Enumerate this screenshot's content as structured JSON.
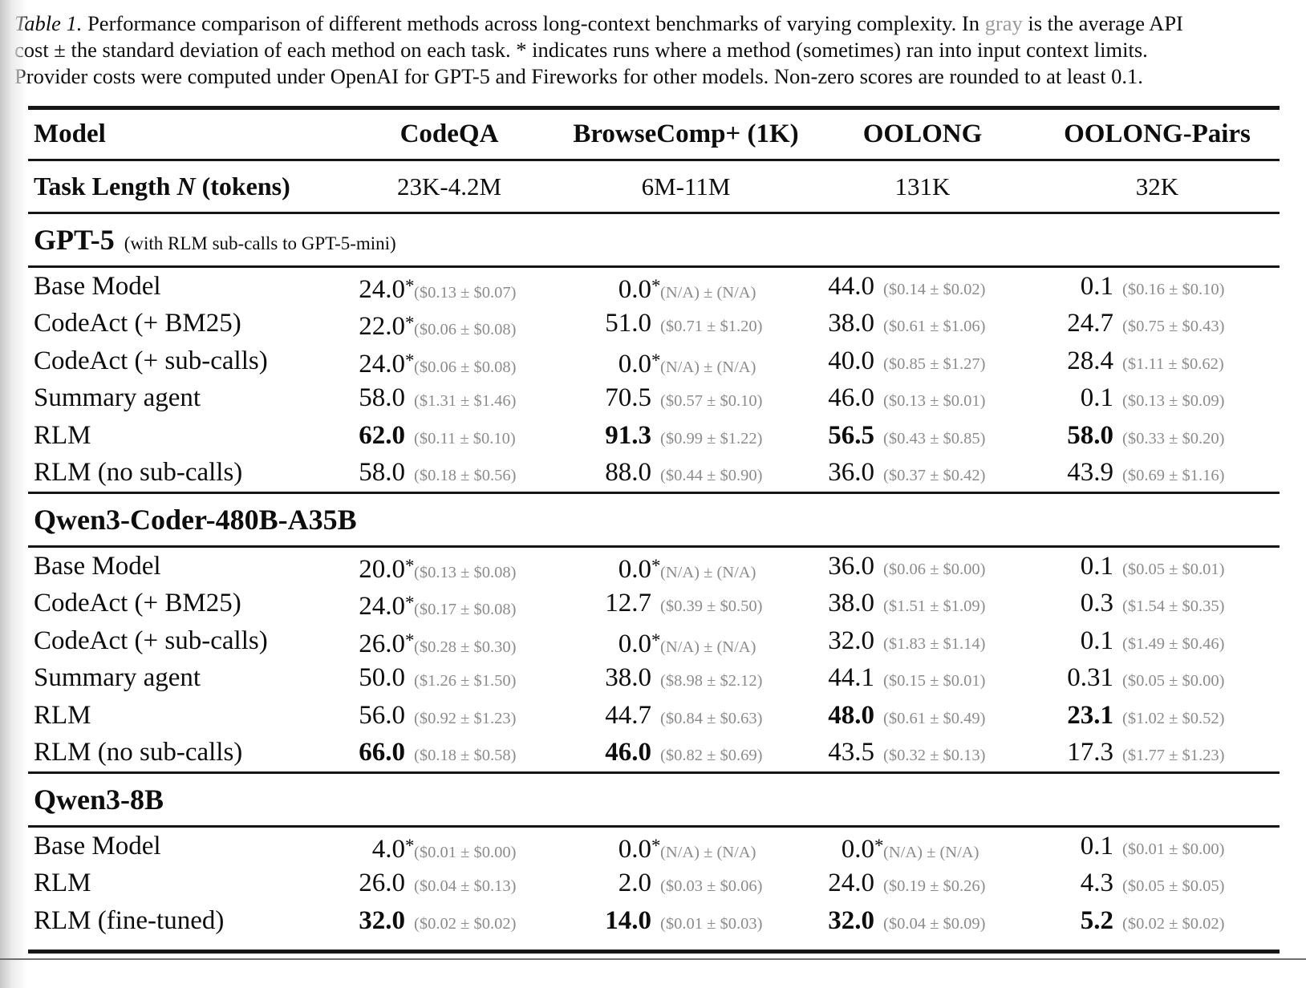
{
  "caption": {
    "label": "Table 1.",
    "line1_pre": "Performance comparison of different methods across long-context benchmarks of varying complexity. In ",
    "line1_gray": "gray",
    "line1_post": " is the average API",
    "line2": "cost ± the standard deviation of each method on each task. * indicates runs where a method (sometimes) ran into input context limits.",
    "line3": "Provider costs were computed under OpenAI for GPT-5 and Fireworks for other models. Non-zero scores are rounded to at least 0.1."
  },
  "table": {
    "columns": [
      "Model",
      "CodeQA",
      "BrowseComp+ (1K)",
      "OOLONG",
      "OOLONG-Pairs"
    ],
    "task_label_pre": "Task Length ",
    "task_label_n": "N",
    "task_label_post": " (tokens)",
    "task_lengths": [
      "23K-4.2M",
      "6M-11M",
      "131K",
      "32K"
    ],
    "colors": {
      "cost_gray": "#8c8c8c",
      "gray_word": "#9a9a9a",
      "rule_black": "#161616"
    },
    "sections": [
      {
        "title": "GPT-5",
        "subtitle": "(with RLM sub-calls to GPT-5-mini)",
        "rows": [
          {
            "model": "Base Model",
            "cells": [
              {
                "score": "24.0",
                "star": true,
                "bold": false,
                "cost": "($0.13 ± $0.07)"
              },
              {
                "score": "0.0",
                "star": true,
                "bold": false,
                "cost": "(N/A) ± (N/A)"
              },
              {
                "score": "44.0",
                "star": false,
                "bold": false,
                "cost": "($0.14 ± $0.02)"
              },
              {
                "score": "0.1",
                "star": false,
                "bold": false,
                "cost": "($0.16 ± $0.10)"
              }
            ]
          },
          {
            "model": "CodeAct (+ BM25)",
            "cells": [
              {
                "score": "22.0",
                "star": true,
                "bold": false,
                "cost": "($0.06 ± $0.08)"
              },
              {
                "score": "51.0",
                "star": false,
                "bold": false,
                "cost": "($0.71 ± $1.20)"
              },
              {
                "score": "38.0",
                "star": false,
                "bold": false,
                "cost": "($0.61 ± $1.06)"
              },
              {
                "score": "24.7",
                "star": false,
                "bold": false,
                "cost": "($0.75 ± $0.43)"
              }
            ]
          },
          {
            "model": "CodeAct (+ sub-calls)",
            "cells": [
              {
                "score": "24.0",
                "star": true,
                "bold": false,
                "cost": "($0.06 ± $0.08)"
              },
              {
                "score": "0.0",
                "star": true,
                "bold": false,
                "cost": "(N/A) ± (N/A)"
              },
              {
                "score": "40.0",
                "star": false,
                "bold": false,
                "cost": "($0.85 ± $1.27)"
              },
              {
                "score": "28.4",
                "star": false,
                "bold": false,
                "cost": "($1.11 ± $0.62)"
              }
            ]
          },
          {
            "model": "Summary agent",
            "cells": [
              {
                "score": "58.0",
                "star": false,
                "bold": false,
                "cost": "($1.31 ± $1.46)"
              },
              {
                "score": "70.5",
                "star": false,
                "bold": false,
                "cost": "($0.57 ± $0.10)"
              },
              {
                "score": "46.0",
                "star": false,
                "bold": false,
                "cost": "($0.13 ± $0.01)"
              },
              {
                "score": "0.1",
                "star": false,
                "bold": false,
                "cost": "($0.13 ± $0.09)"
              }
            ]
          },
          {
            "model": "RLM",
            "cells": [
              {
                "score": "62.0",
                "star": false,
                "bold": true,
                "cost": "($0.11 ± $0.10)"
              },
              {
                "score": "91.3",
                "star": false,
                "bold": true,
                "cost": "($0.99 ± $1.22)"
              },
              {
                "score": "56.5",
                "star": false,
                "bold": true,
                "cost": "($0.43 ± $0.85)"
              },
              {
                "score": "58.0",
                "star": false,
                "bold": true,
                "cost": "($0.33 ± $0.20)"
              }
            ]
          },
          {
            "model": "RLM (no sub-calls)",
            "cells": [
              {
                "score": "58.0",
                "star": false,
                "bold": false,
                "cost": "($0.18 ± $0.56)"
              },
              {
                "score": "88.0",
                "star": false,
                "bold": false,
                "cost": "($0.44 ± $0.90)"
              },
              {
                "score": "36.0",
                "star": false,
                "bold": false,
                "cost": "($0.37 ± $0.42)"
              },
              {
                "score": "43.9",
                "star": false,
                "bold": false,
                "cost": "($0.69 ± $1.16)"
              }
            ]
          }
        ]
      },
      {
        "title": "Qwen3-Coder-480B-A35B",
        "subtitle": "",
        "rows": [
          {
            "model": "Base Model",
            "cells": [
              {
                "score": "20.0",
                "star": true,
                "bold": false,
                "cost": "($0.13 ± $0.08)"
              },
              {
                "score": "0.0",
                "star": true,
                "bold": false,
                "cost": "(N/A) ± (N/A)"
              },
              {
                "score": "36.0",
                "star": false,
                "bold": false,
                "cost": "($0.06 ± $0.00)"
              },
              {
                "score": "0.1",
                "star": false,
                "bold": false,
                "cost": "($0.05 ± $0.01)"
              }
            ]
          },
          {
            "model": "CodeAct (+ BM25)",
            "cells": [
              {
                "score": "24.0",
                "star": true,
                "bold": false,
                "cost": "($0.17 ± $0.08)"
              },
              {
                "score": "12.7",
                "star": false,
                "bold": false,
                "cost": "($0.39 ± $0.50)"
              },
              {
                "score": "38.0",
                "star": false,
                "bold": false,
                "cost": "($1.51 ± $1.09)"
              },
              {
                "score": "0.3",
                "star": false,
                "bold": false,
                "cost": "($1.54 ± $0.35)"
              }
            ]
          },
          {
            "model": "CodeAct (+ sub-calls)",
            "cells": [
              {
                "score": "26.0",
                "star": true,
                "bold": false,
                "cost": "($0.28 ± $0.30)"
              },
              {
                "score": "0.0",
                "star": true,
                "bold": false,
                "cost": "(N/A) ± (N/A)"
              },
              {
                "score": "32.0",
                "star": false,
                "bold": false,
                "cost": "($1.83 ± $1.14)"
              },
              {
                "score": "0.1",
                "star": false,
                "bold": false,
                "cost": "($1.49 ± $0.46)"
              }
            ]
          },
          {
            "model": "Summary agent",
            "cells": [
              {
                "score": "50.0",
                "star": false,
                "bold": false,
                "cost": "($1.26 ± $1.50)"
              },
              {
                "score": "38.0",
                "star": false,
                "bold": false,
                "cost": "($8.98 ± $2.12)"
              },
              {
                "score": "44.1",
                "star": false,
                "bold": false,
                "cost": "($0.15 ± $0.01)"
              },
              {
                "score": "0.31",
                "star": false,
                "bold": false,
                "cost": "($0.05 ± $0.00)"
              }
            ]
          },
          {
            "model": "RLM",
            "cells": [
              {
                "score": "56.0",
                "star": false,
                "bold": false,
                "cost": "($0.92 ± $1.23)"
              },
              {
                "score": "44.7",
                "star": false,
                "bold": false,
                "cost": "($0.84 ± $0.63)"
              },
              {
                "score": "48.0",
                "star": false,
                "bold": true,
                "cost": "($0.61 ± $0.49)"
              },
              {
                "score": "23.1",
                "star": false,
                "bold": true,
                "cost": "($1.02 ± $0.52)"
              }
            ]
          },
          {
            "model": "RLM (no sub-calls)",
            "cells": [
              {
                "score": "66.0",
                "star": false,
                "bold": true,
                "cost": "($0.18 ± $0.58)"
              },
              {
                "score": "46.0",
                "star": false,
                "bold": true,
                "cost": "($0.82 ± $0.69)"
              },
              {
                "score": "43.5",
                "star": false,
                "bold": false,
                "cost": "($0.32 ± $0.13)"
              },
              {
                "score": "17.3",
                "star": false,
                "bold": false,
                "cost": "($1.77 ± $1.23)"
              }
            ]
          }
        ]
      },
      {
        "title": "Qwen3-8B",
        "subtitle": "",
        "rows": [
          {
            "model": "Base Model",
            "cells": [
              {
                "score": "4.0",
                "star": true,
                "bold": false,
                "cost": "($0.01 ± $0.00)"
              },
              {
                "score": "0.0",
                "star": true,
                "bold": false,
                "cost": "(N/A) ± (N/A)"
              },
              {
                "score": "0.0",
                "star": true,
                "bold": false,
                "cost": "(N/A) ± (N/A)"
              },
              {
                "score": "0.1",
                "star": false,
                "bold": false,
                "cost": "($0.01 ± $0.00)"
              }
            ]
          },
          {
            "model": "RLM",
            "cells": [
              {
                "score": "26.0",
                "star": false,
                "bold": false,
                "cost": "($0.04 ± $0.13)"
              },
              {
                "score": "2.0",
                "star": false,
                "bold": false,
                "cost": "($0.03 ± $0.06)"
              },
              {
                "score": "24.0",
                "star": false,
                "bold": false,
                "cost": "($0.19 ± $0.26)"
              },
              {
                "score": "4.3",
                "star": false,
                "bold": false,
                "cost": "($0.05 ± $0.05)"
              }
            ]
          },
          {
            "model": "RLM (fine-tuned)",
            "cells": [
              {
                "score": "32.0",
                "star": false,
                "bold": true,
                "cost": "($0.02 ± $0.02)"
              },
              {
                "score": "14.0",
                "star": false,
                "bold": true,
                "cost": "($0.01 ± $0.03)"
              },
              {
                "score": "32.0",
                "star": false,
                "bold": true,
                "cost": "($0.04 ± $0.09)"
              },
              {
                "score": "5.2",
                "star": false,
                "bold": true,
                "cost": "($0.02 ± $0.02)"
              }
            ]
          }
        ]
      }
    ]
  }
}
